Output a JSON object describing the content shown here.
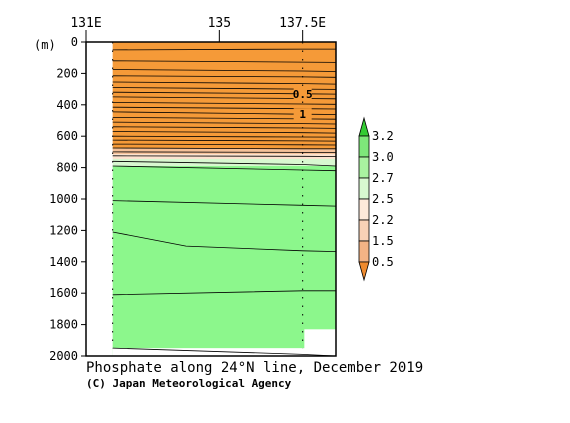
{
  "chart_data": {
    "type": "contour-section",
    "title": "Phosphate along 24°N line, December 2019",
    "credit": "(C) Japan Meteorological Agency",
    "y_unit_label": "(m)",
    "x_ticks": [
      {
        "label": "131E",
        "lon": 131.0
      },
      {
        "label": "135",
        "lon": 135.0
      },
      {
        "label": "137.5E",
        "lon": 137.5
      }
    ],
    "x_range": [
      131.0,
      138.5
    ],
    "data_lon_range": [
      131.8,
      138.5
    ],
    "y_ticks": [
      0,
      200,
      400,
      600,
      800,
      1000,
      1200,
      1400,
      1600,
      1800,
      2000
    ],
    "y_range": [
      0,
      2000
    ],
    "y_reversed": true,
    "bottom_data_depth": 1950,
    "bottom_right_gap": {
      "lon_from": 137.55,
      "depth_from": 1830
    },
    "station_lons": [
      131.8,
      137.5
    ],
    "contour_labels": [
      {
        "text": "0.5",
        "lon": 137.5,
        "depth": 330
      },
      {
        "text": "1",
        "lon": 137.5,
        "depth": 460
      }
    ],
    "colorbar": {
      "levels": [
        0.5,
        1.5,
        2.2,
        2.5,
        2.7,
        3.0,
        3.2
      ],
      "tick_labels": [
        "3.2",
        "3.0",
        "2.7",
        "2.5",
        "2.2",
        "1.5",
        "0.5"
      ],
      "colors": [
        "#ee8a2e",
        "#f3b385",
        "#f8d2b6",
        "#fde9da",
        "#d8f8d0",
        "#a9f2a0",
        "#7ee87a",
        "#33cc33"
      ],
      "extend": "both"
    },
    "bands": [
      {
        "depth_top": 0,
        "depth_bottom": 680,
        "value_range": "<0.5-1.5",
        "color": "#f59a38"
      },
      {
        "depth_top": 680,
        "depth_bottom": 715,
        "value_range": "1.5-2.2",
        "color": "#f6c29a"
      },
      {
        "depth_top": 715,
        "depth_bottom": 745,
        "value_range": "2.2-2.5",
        "color": "#fde3d0"
      },
      {
        "depth_top": 745,
        "depth_bottom": 790,
        "value_range": "2.5-2.7",
        "color": "#d8f8d0"
      },
      {
        "depth_top": 790,
        "depth_bottom": 2000,
        "value_range": "2.7-3.0",
        "color": "#8cf78c"
      }
    ],
    "contours": [
      {
        "lon": [
          131.8,
          137.5,
          138.5
        ],
        "depth": [
          50,
          45,
          45
        ]
      },
      {
        "lon": [
          131.8,
          137.5,
          138.5
        ],
        "depth": [
          120,
          128,
          130
        ]
      },
      {
        "lon": [
          131.8,
          137.5,
          138.5
        ],
        "depth": [
          175,
          185,
          188
        ]
      },
      {
        "lon": [
          131.8,
          137.5,
          138.5
        ],
        "depth": [
          215,
          222,
          225
        ]
      },
      {
        "lon": [
          131.8,
          137.5,
          138.5
        ],
        "depth": [
          255,
          265,
          268
        ]
      },
      {
        "lon": [
          131.8,
          137.5,
          138.5
        ],
        "depth": [
          290,
          300,
          302
        ]
      },
      {
        "lon": [
          131.8,
          137.5,
          138.5
        ],
        "depth": [
          320,
          330,
          332
        ]
      },
      {
        "lon": [
          131.8,
          137.5,
          138.5
        ],
        "depth": [
          350,
          360,
          362
        ]
      },
      {
        "lon": [
          131.8,
          137.5,
          138.5
        ],
        "depth": [
          385,
          395,
          397
        ]
      },
      {
        "lon": [
          131.8,
          137.5,
          138.5
        ],
        "depth": [
          415,
          425,
          427
        ]
      },
      {
        "lon": [
          131.8,
          137.5,
          138.5
        ],
        "depth": [
          445,
          460,
          462
        ]
      },
      {
        "lon": [
          131.8,
          137.5,
          138.5
        ],
        "depth": [
          480,
          490,
          492
        ]
      },
      {
        "lon": [
          131.8,
          137.5,
          138.5
        ],
        "depth": [
          510,
          520,
          522
        ]
      },
      {
        "lon": [
          131.8,
          137.5,
          138.5
        ],
        "depth": [
          540,
          548,
          550
        ]
      },
      {
        "lon": [
          131.8,
          137.5,
          138.5
        ],
        "depth": [
          570,
          578,
          580
        ]
      },
      {
        "lon": [
          131.8,
          137.5,
          138.5
        ],
        "depth": [
          600,
          605,
          606
        ]
      },
      {
        "lon": [
          131.8,
          137.5,
          138.5
        ],
        "depth": [
          625,
          630,
          631
        ]
      },
      {
        "lon": [
          131.8,
          137.5,
          138.5
        ],
        "depth": [
          650,
          655,
          656
        ]
      },
      {
        "lon": [
          131.8,
          137.5,
          138.5
        ],
        "depth": [
          675,
          680,
          680
        ]
      },
      {
        "lon": [
          131.8,
          137.5,
          138.5
        ],
        "depth": [
          700,
          703,
          704
        ]
      },
      {
        "lon": [
          131.8,
          137.5,
          138.5
        ],
        "depth": [
          725,
          728,
          729
        ]
      },
      {
        "lon": [
          131.8,
          137.5,
          138.5
        ],
        "depth": [
          760,
          780,
          790
        ]
      },
      {
        "lon": [
          131.8,
          137.5,
          138.5
        ],
        "depth": [
          790,
          815,
          820
        ]
      },
      {
        "lon": [
          131.8,
          137.5,
          138.5
        ],
        "depth": [
          1010,
          1040,
          1045
        ]
      },
      {
        "lon": [
          131.8,
          134.0,
          137.5,
          138.5
        ],
        "depth": [
          1210,
          1300,
          1330,
          1335
        ]
      },
      {
        "lon": [
          131.8,
          137.5,
          138.5
        ],
        "depth": [
          1610,
          1585,
          1585
        ]
      },
      {
        "lon": [
          131.8,
          137.5,
          138.5
        ],
        "depth": [
          1950,
          1990,
          2000
        ]
      }
    ]
  }
}
